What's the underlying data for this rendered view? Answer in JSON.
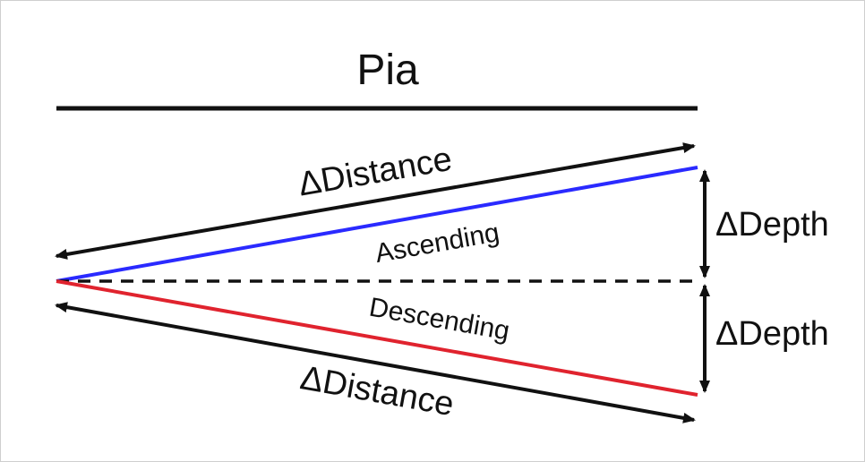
{
  "diagram": {
    "top_label": "Pia",
    "ascending": {
      "distance_label": "ΔDistance",
      "line_label": "Ascending",
      "depth_label": "ΔDepth"
    },
    "descending": {
      "distance_label": "ΔDistance",
      "line_label": "Descending",
      "depth_label": "ΔDepth"
    },
    "colors": {
      "ascending_line": "#2a2aff",
      "descending_line": "#e0232e",
      "arrows": "#111111",
      "baseline": "#111111"
    }
  }
}
